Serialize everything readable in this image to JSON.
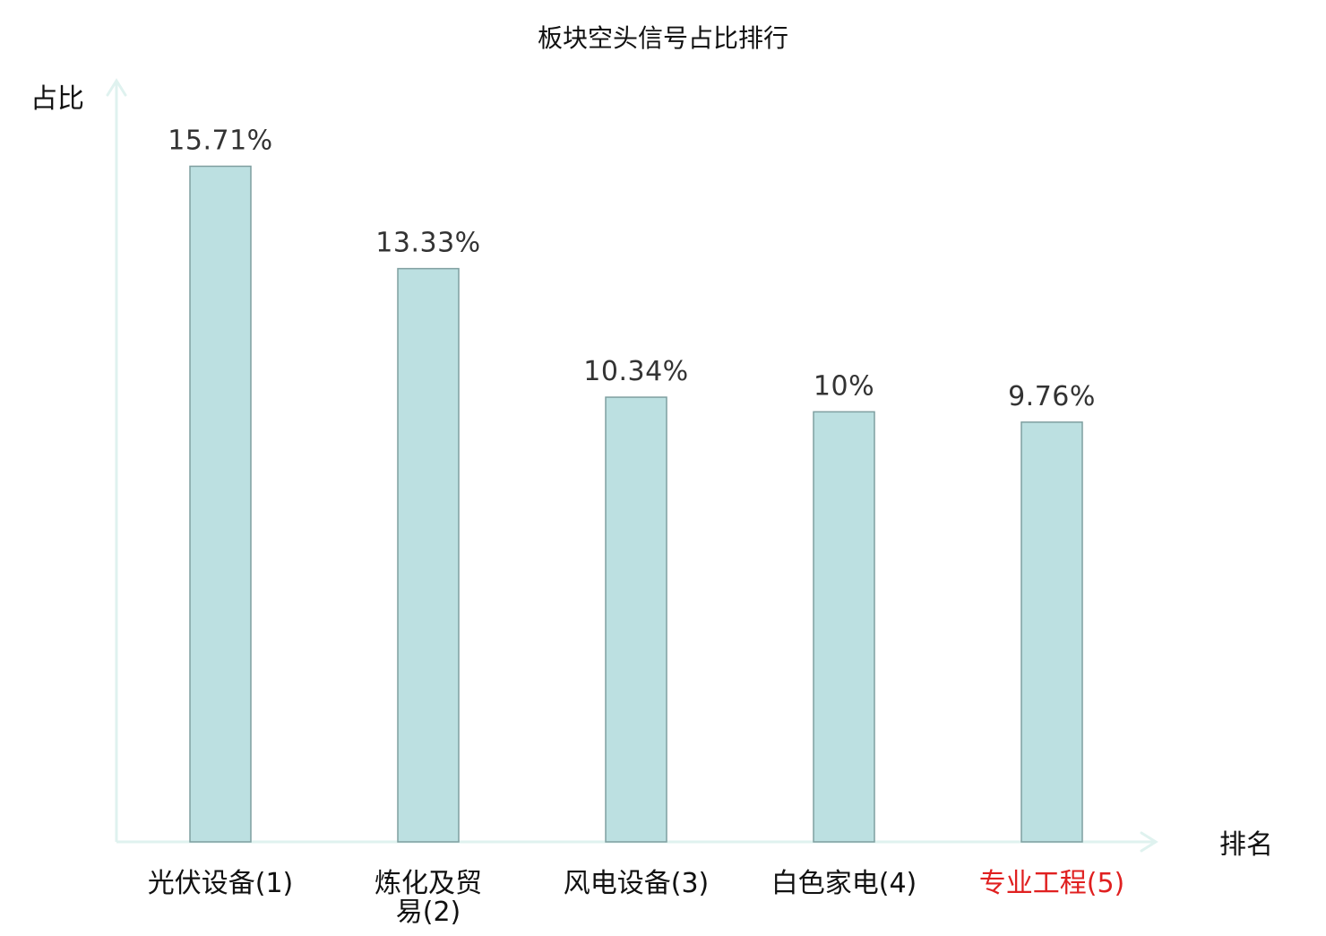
{
  "chart_data": {
    "type": "bar",
    "title": "板块空头信号占比排行",
    "xlabel": "排名",
    "ylabel": "占比",
    "ylim": [
      0,
      17.7
    ],
    "grid": false,
    "legend": "none",
    "categories": [
      [
        "光伏设备(1)"
      ],
      [
        "炼化及贸",
        "易(2)"
      ],
      [
        "风电设备(3)"
      ],
      [
        "白色家电(4)"
      ],
      [
        "专业工程(5)"
      ]
    ],
    "values": [
      15.71,
      13.33,
      10.34,
      10.0,
      9.76
    ],
    "value_labels": [
      "15.71%",
      "13.33%",
      "10.34%",
      "10%",
      "9.76%"
    ],
    "highlight_index": 4,
    "colors": {
      "bar_fill": "#bce0e1",
      "bar_stroke": "#7f9fa0",
      "axis": "#dff2ef",
      "label_text": "#333333",
      "axis_title": "#111111",
      "highlight_text": "#e02020"
    }
  }
}
